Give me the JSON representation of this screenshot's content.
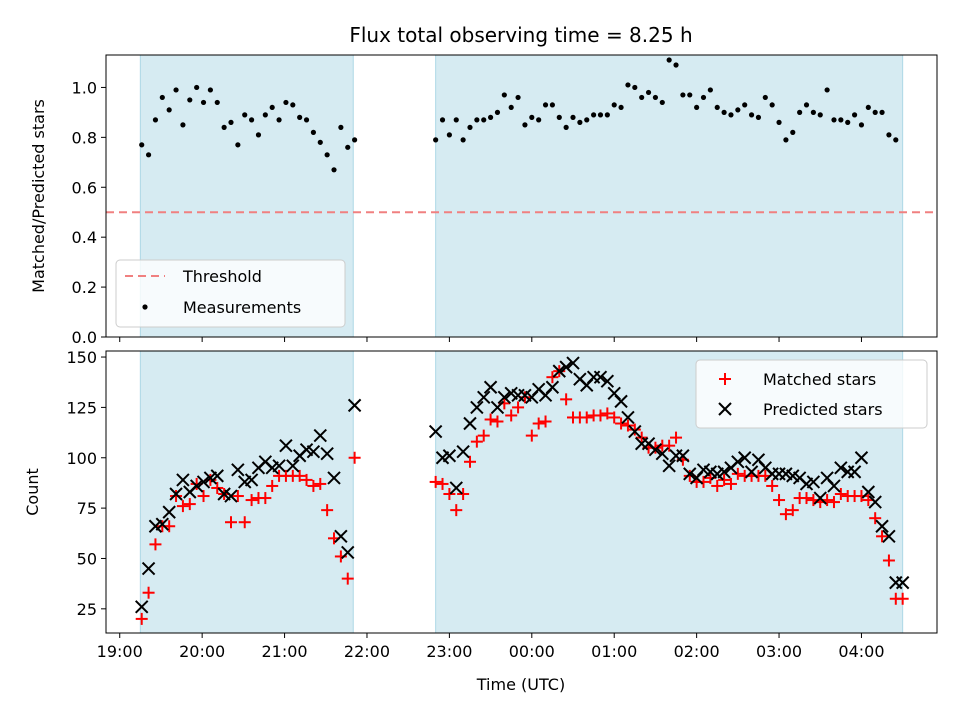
{
  "figure": {
    "title": "Flux total observing time = 8.25 h"
  },
  "chart_data": [
    {
      "type": "scatter",
      "panel": "top",
      "ylabel": "Matched/Predicted stars",
      "xlabel": "",
      "ylim": [
        0.0,
        1.13
      ],
      "yticks": [
        "0.0",
        "0.2",
        "0.4",
        "0.6",
        "0.8",
        "1.0"
      ],
      "shaded_intervals": [
        [
          "19:15",
          "21:50"
        ],
        [
          "22:50",
          "04:30"
        ]
      ],
      "threshold": {
        "name": "Threshold",
        "value": 0.5,
        "color": "#f08080"
      },
      "legend_position": "lower-left",
      "series": [
        {
          "name": "Measurements",
          "color": "#000000",
          "x": [
            "19:16",
            "19:21",
            "19:26",
            "19:31",
            "19:36",
            "19:41",
            "19:46",
            "19:51",
            "19:56",
            "20:01",
            "20:06",
            "20:11",
            "20:16",
            "20:21",
            "20:26",
            "20:31",
            "20:36",
            "20:41",
            "20:46",
            "20:51",
            "20:56",
            "21:01",
            "21:06",
            "21:11",
            "21:16",
            "21:21",
            "21:26",
            "21:31",
            "21:36",
            "21:41",
            "21:46",
            "21:51",
            "22:50",
            "22:55",
            "23:00",
            "23:05",
            "23:10",
            "23:15",
            "23:20",
            "23:25",
            "23:30",
            "23:35",
            "23:40",
            "23:45",
            "23:50",
            "23:55",
            "00:00",
            "00:05",
            "00:10",
            "00:15",
            "00:20",
            "00:25",
            "00:30",
            "00:35",
            "00:40",
            "00:45",
            "00:50",
            "00:55",
            "01:00",
            "01:05",
            "01:10",
            "01:15",
            "01:20",
            "01:25",
            "01:30",
            "01:35",
            "01:40",
            "01:45",
            "01:50",
            "01:55",
            "02:00",
            "02:05",
            "02:10",
            "02:15",
            "02:20",
            "02:25",
            "02:30",
            "02:35",
            "02:40",
            "02:45",
            "02:50",
            "02:55",
            "03:00",
            "03:05",
            "03:10",
            "03:15",
            "03:20",
            "03:25",
            "03:30",
            "03:35",
            "03:40",
            "03:45",
            "03:50",
            "03:55",
            "04:00",
            "04:05",
            "04:10",
            "04:15",
            "04:20",
            "04:25"
          ],
          "values": [
            0.77,
            0.73,
            0.87,
            0.96,
            0.91,
            0.99,
            0.85,
            0.95,
            1.0,
            0.94,
            0.99,
            0.94,
            0.84,
            0.86,
            0.77,
            0.89,
            0.87,
            0.81,
            0.89,
            0.92,
            0.87,
            0.94,
            0.93,
            0.88,
            0.87,
            0.82,
            0.78,
            0.73,
            0.67,
            0.84,
            0.76,
            0.79,
            0.79,
            0.87,
            0.81,
            0.87,
            0.79,
            0.84,
            0.87,
            0.87,
            0.88,
            0.9,
            0.97,
            0.92,
            0.96,
            0.85,
            0.88,
            0.87,
            0.93,
            0.93,
            0.88,
            0.84,
            0.88,
            0.86,
            0.87,
            0.89,
            0.89,
            0.89,
            0.93,
            0.92,
            1.01,
            1.0,
            0.96,
            0.98,
            0.96,
            0.94,
            1.11,
            1.09,
            0.97,
            0.97,
            0.92,
            0.96,
            0.99,
            0.92,
            0.9,
            0.89,
            0.91,
            0.93,
            0.89,
            0.88,
            0.96,
            0.93,
            0.86,
            0.79,
            0.82,
            0.9,
            0.93,
            0.9,
            0.89,
            0.99,
            0.87,
            0.87,
            0.86,
            0.89,
            0.85,
            0.92,
            0.9,
            0.9,
            0.81,
            0.79
          ]
        }
      ]
    },
    {
      "type": "scatter",
      "panel": "bottom",
      "xlabel": "Time (UTC)",
      "ylabel": "Count",
      "ylim": [
        13,
        153
      ],
      "yticks": [
        "25",
        "50",
        "75",
        "100",
        "125",
        "150"
      ],
      "xticks": [
        "19:00",
        "20:00",
        "21:00",
        "22:00",
        "23:00",
        "00:00",
        "01:00",
        "02:00",
        "03:00",
        "04:00"
      ],
      "xlim": [
        "18:50",
        "04:55"
      ],
      "legend_position": "upper-right",
      "series": [
        {
          "name": "Matched stars",
          "marker": "plus",
          "color": "#ff0000",
          "x": [
            "19:16",
            "19:21",
            "19:26",
            "19:31",
            "19:36",
            "19:41",
            "19:46",
            "19:51",
            "19:56",
            "20:01",
            "20:06",
            "20:11",
            "20:16",
            "20:21",
            "20:26",
            "20:31",
            "20:36",
            "20:41",
            "20:46",
            "20:51",
            "20:56",
            "21:01",
            "21:06",
            "21:11",
            "21:16",
            "21:21",
            "21:26",
            "21:31",
            "21:36",
            "21:41",
            "21:46",
            "21:51",
            "22:50",
            "22:55",
            "23:00",
            "23:05",
            "23:10",
            "23:15",
            "23:20",
            "23:25",
            "23:30",
            "23:35",
            "23:40",
            "23:45",
            "23:50",
            "23:55",
            "00:00",
            "00:05",
            "00:10",
            "00:15",
            "00:20",
            "00:25",
            "00:30",
            "00:35",
            "00:40",
            "00:45",
            "00:50",
            "00:55",
            "01:00",
            "01:05",
            "01:10",
            "01:15",
            "01:20",
            "01:25",
            "01:30",
            "01:35",
            "01:40",
            "01:45",
            "01:50",
            "01:55",
            "02:00",
            "02:05",
            "02:10",
            "02:15",
            "02:20",
            "02:25",
            "02:30",
            "02:35",
            "02:40",
            "02:45",
            "02:50",
            "02:55",
            "03:00",
            "03:05",
            "03:10",
            "03:15",
            "03:20",
            "03:25",
            "03:30",
            "03:35",
            "03:40",
            "03:45",
            "03:50",
            "03:55",
            "04:00",
            "04:05",
            "04:10",
            "04:15",
            "04:20",
            "04:25",
            "04:30"
          ],
          "values": [
            20,
            33,
            57,
            66,
            66,
            81,
            76,
            77,
            87,
            81,
            89,
            85,
            82,
            68,
            81,
            68,
            79,
            80,
            80,
            86,
            91,
            91,
            91,
            91,
            89,
            86,
            87,
            74,
            60,
            51,
            40,
            100,
            88,
            87,
            82,
            74,
            82,
            98,
            108,
            111,
            119,
            118,
            127,
            121,
            125,
            130,
            111,
            117,
            118,
            140,
            143,
            129,
            120,
            120,
            120,
            121,
            121,
            122,
            120,
            117,
            116,
            114,
            110,
            105,
            105,
            106,
            106,
            110,
            99,
            91,
            88,
            88,
            90,
            86,
            89,
            87,
            92,
            91,
            91,
            91,
            91,
            86,
            79,
            72,
            74,
            80,
            80,
            79,
            78,
            79,
            78,
            82,
            81,
            81,
            81,
            79,
            70,
            61,
            49,
            30,
            30
          ]
        },
        {
          "name": "Predicted stars",
          "marker": "x",
          "color": "#000000",
          "x": [
            "19:16",
            "19:21",
            "19:26",
            "19:31",
            "19:36",
            "19:41",
            "19:46",
            "19:51",
            "19:56",
            "20:01",
            "20:06",
            "20:11",
            "20:16",
            "20:21",
            "20:26",
            "20:31",
            "20:36",
            "20:41",
            "20:46",
            "20:51",
            "20:56",
            "21:01",
            "21:06",
            "21:11",
            "21:16",
            "21:21",
            "21:26",
            "21:31",
            "21:36",
            "21:41",
            "21:46",
            "21:51",
            "22:50",
            "22:55",
            "23:00",
            "23:05",
            "23:10",
            "23:15",
            "23:20",
            "23:25",
            "23:30",
            "23:35",
            "23:40",
            "23:45",
            "23:50",
            "23:55",
            "00:00",
            "00:05",
            "00:10",
            "00:15",
            "00:20",
            "00:25",
            "00:30",
            "00:35",
            "00:40",
            "00:45",
            "00:50",
            "00:55",
            "01:00",
            "01:05",
            "01:10",
            "01:15",
            "01:20",
            "01:25",
            "01:30",
            "01:35",
            "01:40",
            "01:45",
            "01:50",
            "01:55",
            "02:00",
            "02:05",
            "02:10",
            "02:15",
            "02:20",
            "02:25",
            "02:30",
            "02:35",
            "02:40",
            "02:45",
            "02:50",
            "02:55",
            "03:00",
            "03:05",
            "03:10",
            "03:15",
            "03:20",
            "03:25",
            "03:30",
            "03:35",
            "03:40",
            "03:45",
            "03:50",
            "03:55",
            "04:00",
            "04:05",
            "04:10",
            "04:15",
            "04:20",
            "04:25",
            "04:30"
          ],
          "values": [
            26,
            45,
            66,
            67,
            73,
            82,
            89,
            83,
            86,
            88,
            90,
            91,
            82,
            81,
            94,
            88,
            89,
            95,
            98,
            95,
            96,
            106,
            96,
            101,
            104,
            103,
            111,
            102,
            90,
            61,
            53,
            126,
            113,
            100,
            101,
            85,
            103,
            117,
            125,
            130,
            135,
            125,
            130,
            132,
            131,
            131,
            130,
            134,
            131,
            135,
            143,
            145,
            147,
            139,
            136,
            140,
            140,
            138,
            132,
            128,
            120,
            113,
            107,
            107,
            104,
            102,
            96,
            101,
            101,
            92,
            90,
            94,
            93,
            92,
            93,
            95,
            98,
            100,
            93,
            99,
            95,
            92,
            92,
            92,
            91,
            90,
            87,
            88,
            80,
            90,
            86,
            95,
            93,
            93,
            100,
            83,
            78,
            66,
            61,
            38,
            38
          ]
        }
      ]
    }
  ]
}
